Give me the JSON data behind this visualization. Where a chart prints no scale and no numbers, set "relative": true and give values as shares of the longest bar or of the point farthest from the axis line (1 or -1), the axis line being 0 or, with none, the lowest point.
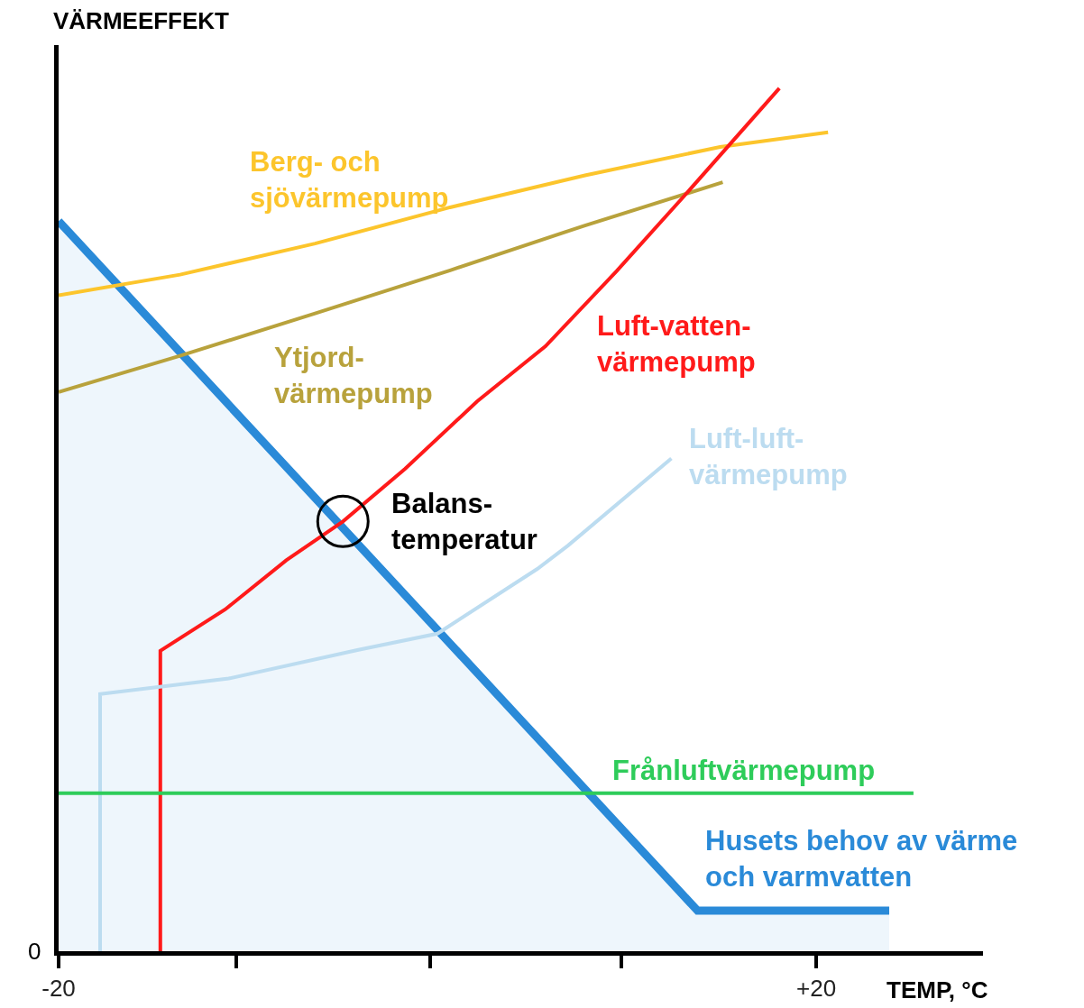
{
  "chart_data": {
    "type": "line",
    "relative": true,
    "xlabel": "TEMP, °C",
    "ylabel": "VÄRMEEFFEKT",
    "legend": false,
    "grid": false,
    "marker": "none",
    "line_style": "solid",
    "xlim": [
      -20,
      28.8
    ],
    "xticks": [
      -20,
      {
        "value": -10.6,
        "label": null
      },
      {
        "value": -0.4,
        "label": null
      },
      {
        "value": 9.7,
        "label": null
      },
      {
        "value": 20,
        "label": "+20"
      }
    ],
    "annotations": [
      {
        "text": "Balans-\ntemperatur",
        "x": -4.99,
        "y": 0.498
      },
      "0"
    ],
    "series": [
      {
        "name": "Husets behov av värme\noch varmvatten",
        "type": "area",
        "color": "#2a8ad8",
        "x": [
          -20,
          13.73,
          23.85
        ],
        "values": [
          0.846,
          0.047,
          0.047
        ]
      },
      {
        "name": "Berg- och\nsjövärmepump",
        "color": "#fcc52c",
        "x": [
          -20,
          -13.59,
          -6.46,
          0.67,
          7.79,
          14.92,
          20.62
        ],
        "values": [
          0.76,
          0.784,
          0.82,
          0.862,
          0.899,
          0.932,
          0.949
        ]
      },
      {
        "name": "Ytjord-\nvärmepump",
        "color": "#b8a23c",
        "x": [
          -20,
          -13.59,
          -6.46,
          0.67,
          7.79,
          15.06
        ],
        "values": [
          0.648,
          0.69,
          0.739,
          0.789,
          0.841,
          0.891
        ]
      },
      {
        "name": "Luft-vatten-\nvärmepump",
        "color": "#ff1a1a",
        "x": [
          -14.63,
          -14.63,
          -11.21,
          -7.98,
          -4.99,
          -1.71,
          2.09,
          5.7,
          9.45,
          13.02,
          18.05
        ],
        "values": [
          0,
          0.348,
          0.396,
          0.453,
          0.498,
          0.559,
          0.637,
          0.701,
          0.788,
          0.875,
          1
        ]
      },
      {
        "name": "Luft-luft-\nvärmepump",
        "color": "#bcdcf0",
        "x": [
          -17.81,
          -17.81,
          -11.02,
          -4.23,
          0,
          5.27,
          6.89,
          12.35
        ],
        "values": [
          0,
          0.298,
          0.316,
          0.349,
          0.368,
          0.443,
          0.47,
          0.571
        ]
      },
      {
        "name": "Frånluftvärmepump",
        "color": "#2ecc5a",
        "x": [
          -20,
          25.13
        ],
        "values": [
          0.183,
          0.183
        ]
      }
    ]
  }
}
